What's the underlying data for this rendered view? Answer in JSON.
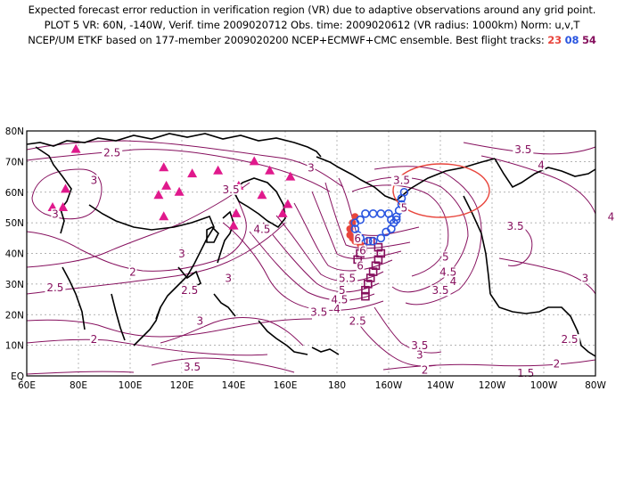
{
  "title": {
    "line1": "Expected forecast error reduction in verification region (VR) due to adaptive observations around any grid point.",
    "line2": "PLOT 5 VR: 60N, -140W, Verif. time 2009020712 Obs. time: 2009020612 (VR radius: 1000km) Norm: u,v,T",
    "line3_prefix": "NCEP/UM ETKF based on 177-member 2009020200 NCEP+ECMWF+CMC ensemble. Best flight tracks:",
    "track_red": "23",
    "track_blue": "08",
    "track_purple": "54"
  },
  "axes": {
    "lat_labels": [
      "80N",
      "70N",
      "60N",
      "50N",
      "40N",
      "30N",
      "20N",
      "10N",
      "EQ"
    ],
    "lon_labels": [
      "60E",
      "80E",
      "100E",
      "120E",
      "140E",
      "160E",
      "180",
      "160W",
      "140W",
      "120W",
      "100W",
      "80W"
    ]
  },
  "contour_labels": [
    {
      "text": "2.5",
      "lon": 93,
      "lat": 72
    },
    {
      "text": "3",
      "lon": 170,
      "lat": 67
    },
    {
      "text": "3.5",
      "lon": 252,
      "lat": 73
    },
    {
      "text": "4",
      "lon": 259,
      "lat": 68
    },
    {
      "text": "3",
      "lon": 86,
      "lat": 63
    },
    {
      "text": "3",
      "lon": 71,
      "lat": 52
    },
    {
      "text": "3.5",
      "lon": 139,
      "lat": 60
    },
    {
      "text": "4.5",
      "lon": 151,
      "lat": 47
    },
    {
      "text": "3.5",
      "lon": 205,
      "lat": 63
    },
    {
      "text": "5",
      "lon": 206,
      "lat": 54
    },
    {
      "text": "3.5",
      "lon": 249,
      "lat": 48
    },
    {
      "text": "4",
      "lon": 286,
      "lat": 51
    },
    {
      "text": "3",
      "lon": 120,
      "lat": 39
    },
    {
      "text": "3",
      "lon": 138,
      "lat": 31
    },
    {
      "text": "2",
      "lon": 101,
      "lat": 33
    },
    {
      "text": "2.5",
      "lon": 71,
      "lat": 28
    },
    {
      "text": "2.5",
      "lon": 123,
      "lat": 27
    },
    {
      "text": "5",
      "lon": 222,
      "lat": 38
    },
    {
      "text": "4.5",
      "lon": 223,
      "lat": 33
    },
    {
      "text": "4",
      "lon": 225,
      "lat": 30
    },
    {
      "text": "3.5",
      "lon": 220,
      "lat": 27
    },
    {
      "text": "3",
      "lon": 276,
      "lat": 31
    },
    {
      "text": "6",
      "lon": 188,
      "lat": 44
    },
    {
      "text": "6",
      "lon": 190,
      "lat": 40
    },
    {
      "text": "6",
      "lon": 189,
      "lat": 35
    },
    {
      "text": "5.5",
      "lon": 184,
      "lat": 31
    },
    {
      "text": "5",
      "lon": 182,
      "lat": 27
    },
    {
      "text": "4.5",
      "lon": 181,
      "lat": 24
    },
    {
      "text": "4",
      "lon": 180,
      "lat": 21
    },
    {
      "text": "3.5",
      "lon": 173,
      "lat": 20
    },
    {
      "text": "2.5",
      "lon": 188,
      "lat": 17
    },
    {
      "text": "3",
      "lon": 127,
      "lat": 17
    },
    {
      "text": "2",
      "lon": 86,
      "lat": 11
    },
    {
      "text": "3.5",
      "lon": 212,
      "lat": 9
    },
    {
      "text": "3",
      "lon": 212,
      "lat": 6
    },
    {
      "text": "2",
      "lon": 214,
      "lat": 1
    },
    {
      "text": "3.5",
      "lon": 124,
      "lat": 2
    },
    {
      "text": "1.5",
      "lon": 253,
      "lat": 0
    },
    {
      "text": "2",
      "lon": 265,
      "lat": 3
    },
    {
      "text": "2.5",
      "lon": 270,
      "lat": 11
    }
  ],
  "markers_triangles": [
    {
      "lon": 79,
      "lat": 74
    },
    {
      "lon": 113,
      "lat": 68
    },
    {
      "lon": 124,
      "lat": 66
    },
    {
      "lon": 134,
      "lat": 67
    },
    {
      "lon": 148,
      "lat": 70
    },
    {
      "lon": 154,
      "lat": 67
    },
    {
      "lon": 75,
      "lat": 61
    },
    {
      "lon": 114,
      "lat": 62
    },
    {
      "lon": 119,
      "lat": 60
    },
    {
      "lon": 142,
      "lat": 62
    },
    {
      "lon": 151,
      "lat": 59
    },
    {
      "lon": 111,
      "lat": 59
    },
    {
      "lon": 74,
      "lat": 55
    },
    {
      "lon": 70,
      "lat": 55
    },
    {
      "lon": 113,
      "lat": 52
    },
    {
      "lon": 141,
      "lat": 53
    },
    {
      "lon": 159,
      "lat": 53
    },
    {
      "lon": 161,
      "lat": 56
    },
    {
      "lon": 140,
      "lat": 49
    },
    {
      "lon": 162,
      "lat": 65
    }
  ],
  "track_red_points": [
    {
      "lon": 187,
      "lat": 52
    },
    {
      "lon": 186,
      "lat": 50
    },
    {
      "lon": 185,
      "lat": 48
    },
    {
      "lon": 185,
      "lat": 46
    },
    {
      "lon": 186,
      "lat": 45
    },
    {
      "lon": 187,
      "lat": 44
    },
    {
      "lon": 189,
      "lat": 43
    }
  ],
  "track_blue_points": [
    {
      "lon": 206,
      "lat": 60
    },
    {
      "lon": 205,
      "lat": 58
    },
    {
      "lon": 205,
      "lat": 56
    },
    {
      "lon": 204,
      "lat": 54
    },
    {
      "lon": 203,
      "lat": 52
    },
    {
      "lon": 202,
      "lat": 50
    },
    {
      "lon": 201,
      "lat": 48
    },
    {
      "lon": 199,
      "lat": 47
    },
    {
      "lon": 197,
      "lat": 45
    },
    {
      "lon": 194,
      "lat": 44
    },
    {
      "lon": 192,
      "lat": 44
    },
    {
      "lon": 189,
      "lat": 45
    },
    {
      "lon": 188,
      "lat": 46
    },
    {
      "lon": 187,
      "lat": 48
    },
    {
      "lon": 187,
      "lat": 50
    },
    {
      "lon": 189,
      "lat": 51
    },
    {
      "lon": 191,
      "lat": 53
    },
    {
      "lon": 194,
      "lat": 53
    },
    {
      "lon": 197,
      "lat": 53
    },
    {
      "lon": 200,
      "lat": 53
    },
    {
      "lon": 201,
      "lat": 51
    },
    {
      "lon": 203,
      "lat": 51
    }
  ],
  "track_purple_points": [
    {
      "lon": 193,
      "lat": 44
    },
    {
      "lon": 196,
      "lat": 42
    },
    {
      "lon": 197,
      "lat": 40
    },
    {
      "lon": 196,
      "lat": 38
    },
    {
      "lon": 195,
      "lat": 36
    },
    {
      "lon": 194,
      "lat": 34
    },
    {
      "lon": 193,
      "lat": 32
    },
    {
      "lon": 192,
      "lat": 30
    },
    {
      "lon": 191,
      "lat": 28
    },
    {
      "lon": 191,
      "lat": 26
    },
    {
      "lon": 190,
      "lat": 42
    },
    {
      "lon": 189,
      "lat": 40
    },
    {
      "lon": 188,
      "lat": 38
    }
  ],
  "verification_region": {
    "lon_center": 218,
    "lat_center": 58
  },
  "colors": {
    "contour": "#86105e",
    "coast": "#000000",
    "triangle": "#e0198c",
    "red_track": "#e8453c",
    "blue_track": "#2a55e0",
    "purple_track": "#86105e",
    "vr_circle": "#e8453c",
    "grid": "#9a9a9a"
  }
}
